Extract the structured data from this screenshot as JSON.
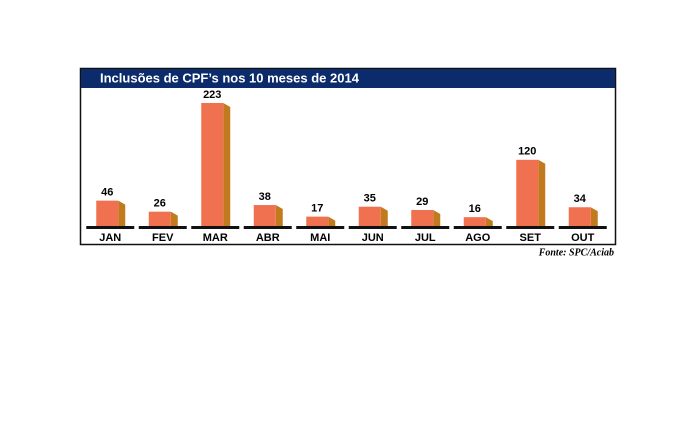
{
  "chart_data": {
    "type": "bar3d",
    "title": "Inclusões de CPF’s nos 10 meses de 2014",
    "categories": [
      "JAN",
      "FEV",
      "MAR",
      "ABR",
      "MAI",
      "JUN",
      "JUL",
      "AGO",
      "SET",
      "OUT"
    ],
    "values": [
      46,
      26,
      223,
      38,
      17,
      35,
      29,
      16,
      120,
      34
    ],
    "color": "#f0714f",
    "side_color": "#c27a1f",
    "source": "Fonte: SPC/Aciab"
  }
}
